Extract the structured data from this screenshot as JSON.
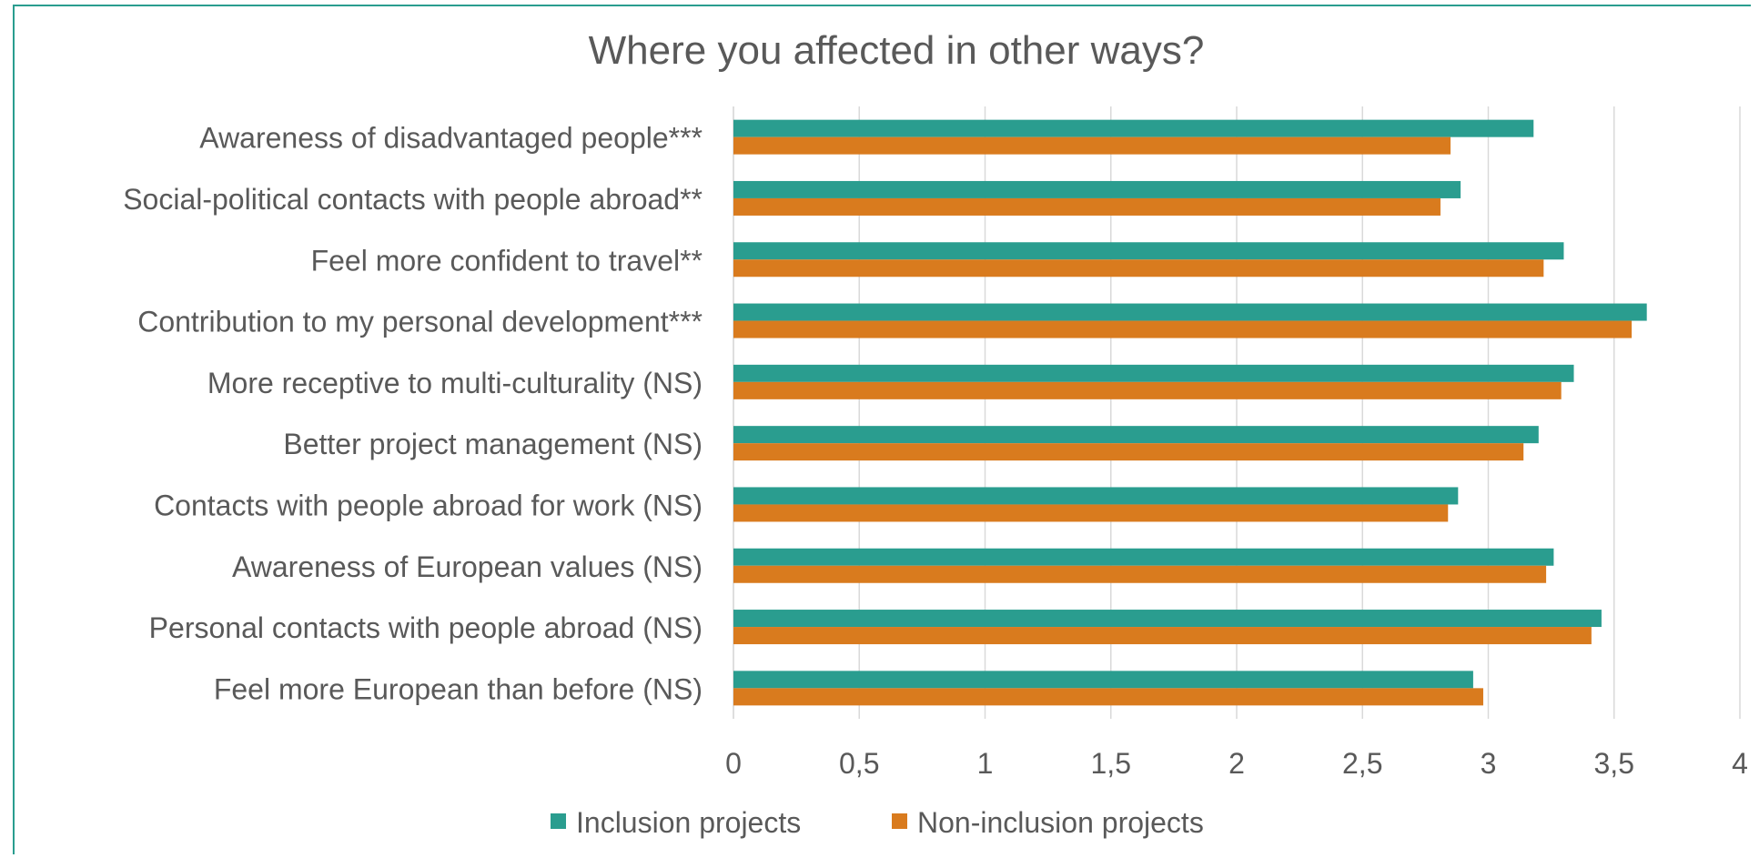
{
  "chart_data": {
    "type": "bar",
    "orientation": "horizontal",
    "title": "Where you affected in other ways?",
    "categories": [
      "Awareness of disadvantaged people***",
      "Social-political contacts with people abroad**",
      "Feel more confident to travel**",
      "Contribution to my personal development***",
      "More receptive to multi-culturality (NS)",
      "Better project management (NS)",
      "Contacts with people abroad for work (NS)",
      "Awareness of European values (NS)",
      "Personal contacts with people abroad (NS)",
      "Feel more European than before (NS)"
    ],
    "series": [
      {
        "name": "Inclusion projects",
        "color": "#2a9d8f",
        "values": [
          3.18,
          2.89,
          3.3,
          3.63,
          3.34,
          3.2,
          2.88,
          3.26,
          3.45,
          2.94
        ]
      },
      {
        "name": "Non-inclusion projects",
        "color": "#d97b1e",
        "values": [
          2.85,
          2.81,
          3.22,
          3.57,
          3.29,
          3.14,
          2.84,
          3.23,
          3.41,
          2.98
        ]
      }
    ],
    "xlim": [
      0,
      4
    ],
    "x_ticks": [
      "0",
      "0,5",
      "1",
      "1,5",
      "2",
      "2,5",
      "3",
      "3,5",
      "4"
    ],
    "x_tick_values": [
      0,
      0.5,
      1,
      1.5,
      2,
      2.5,
      3,
      3.5,
      4
    ],
    "grid": true,
    "legend_position": "bottom"
  }
}
